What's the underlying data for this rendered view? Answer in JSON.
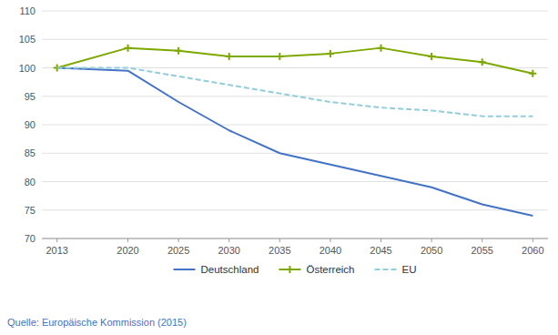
{
  "chart_data": {
    "type": "line",
    "x": [
      2013,
      2020,
      2025,
      2030,
      2035,
      2040,
      2045,
      2050,
      2055,
      2060
    ],
    "series": [
      {
        "name": "Deutschland",
        "color": "#4472C4",
        "line_style": "solid",
        "values": [
          100,
          99.5,
          94,
          89,
          85,
          83,
          81,
          79,
          76,
          74
        ]
      },
      {
        "name": "Österreich",
        "color": "#7dA800",
        "line_style": "solid",
        "marker": "plus",
        "values": [
          100,
          103.5,
          103,
          102,
          102,
          102.5,
          103.5,
          102,
          101,
          99
        ]
      },
      {
        "name": "EU",
        "color": "#92CDDC",
        "line_style": "dashed",
        "values": [
          100,
          100,
          98.5,
          97,
          95.5,
          94,
          93,
          92.5,
          91.5,
          91.5
        ]
      }
    ],
    "xlim": [
      2011.5,
      2061.5
    ],
    "xticks": [
      2013,
      2020,
      2025,
      2030,
      2035,
      2040,
      2045,
      2050,
      2055,
      2060
    ],
    "ylim": [
      70,
      110
    ],
    "yticks": [
      70,
      75,
      80,
      85,
      90,
      95,
      100,
      105,
      110
    ],
    "grid": true,
    "legend": "bottom",
    "annotations": [
      "Quelle: Europäische Kommission (2015)"
    ]
  }
}
